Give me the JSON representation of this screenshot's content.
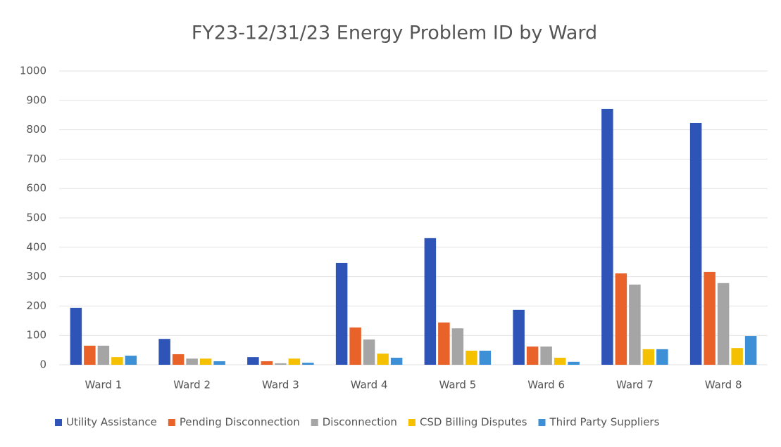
{
  "chart_data": {
    "type": "bar",
    "title": "FY23-12/31/23 Energy Problem ID by Ward",
    "categories": [
      "Ward 1",
      "Ward 2",
      "Ward 3",
      "Ward 4",
      "Ward 5",
      "Ward 6",
      "Ward 7",
      "Ward 8"
    ],
    "series": [
      {
        "name": "Utility Assistance",
        "color": "#2e54b8",
        "values": [
          194,
          88,
          26,
          347,
          431,
          187,
          871,
          823
        ]
      },
      {
        "name": "Pending Disconnection",
        "color": "#e8622a",
        "values": [
          65,
          36,
          12,
          127,
          144,
          62,
          311,
          316
        ]
      },
      {
        "name": "Disconnection",
        "color": "#a5a5a5",
        "values": [
          65,
          21,
          5,
          86,
          124,
          62,
          273,
          278
        ]
      },
      {
        "name": "CSD Billing Disputes",
        "color": "#f5c000",
        "values": [
          26,
          21,
          21,
          38,
          48,
          24,
          53,
          57
        ]
      },
      {
        "name": "Third Party Suppliers",
        "color": "#3d8fd6",
        "values": [
          31,
          12,
          7,
          24,
          48,
          10,
          53,
          98
        ]
      }
    ],
    "ylim": [
      0,
      1000
    ],
    "yticks": [
      0,
      100,
      200,
      300,
      400,
      500,
      600,
      700,
      800,
      900,
      1000
    ],
    "grid": true,
    "legend": "bottom"
  }
}
